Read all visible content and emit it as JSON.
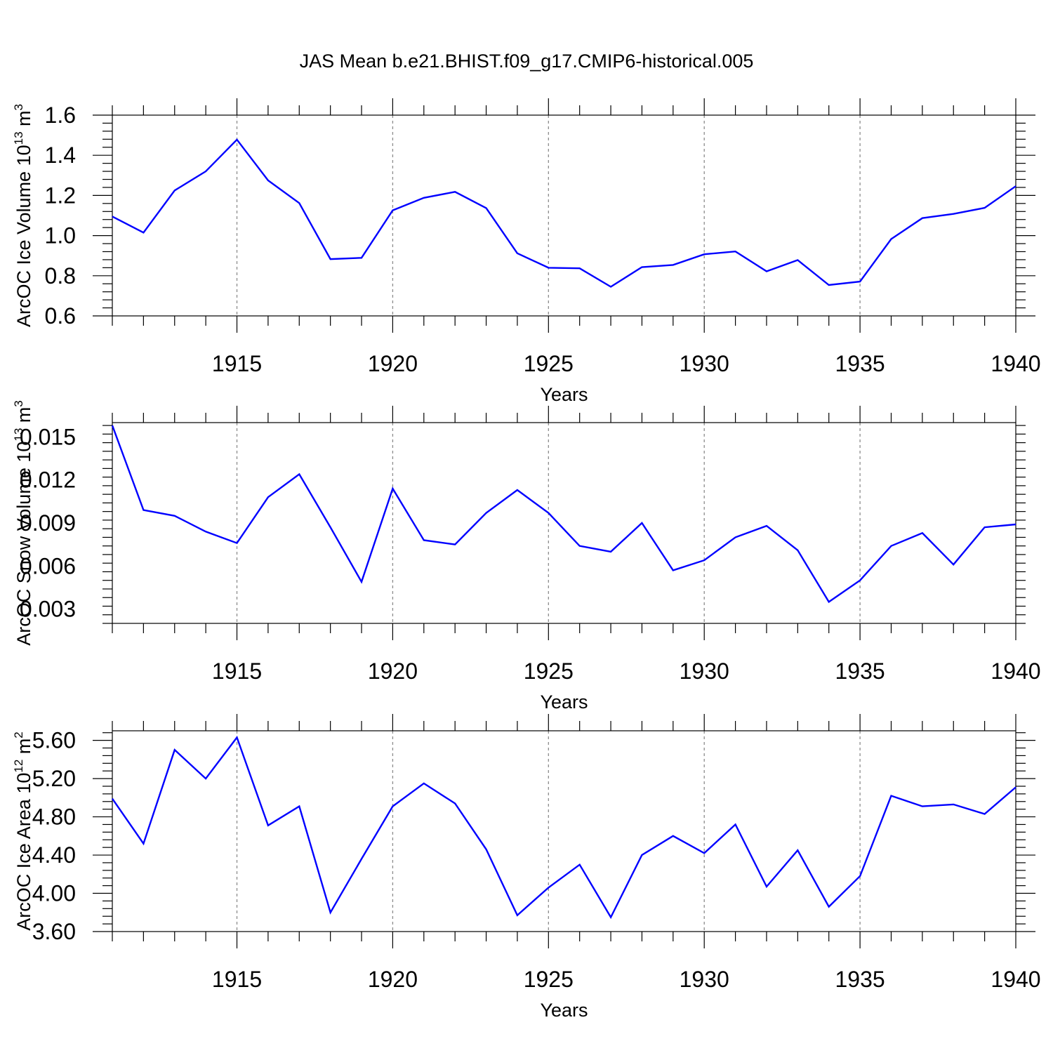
{
  "figure": {
    "title": "JAS Mean b.e21.BHIST.f09_g17.CMIP6-historical.005"
  },
  "colors": {
    "series": "#0000ff",
    "grid": "#8c8c8c",
    "axes": "#000000"
  },
  "chart_data": [
    {
      "type": "line",
      "xlabel": "Years",
      "ylabel_main": "ArcOC Ice Volume 10",
      "ylabel_sup": "13",
      "ylabel_unit": " m",
      "ylabel_unit_sup": "3",
      "xlim": [
        1911,
        1940
      ],
      "ylim": [
        0.6,
        1.6
      ],
      "xticks": [
        1915,
        1920,
        1925,
        1930,
        1935,
        1940
      ],
      "xtick_labels": [
        "1915",
        "1920",
        "1925",
        "1930",
        "1935",
        "1940"
      ],
      "yticks": [
        0.6,
        0.8,
        1.0,
        1.2,
        1.4,
        1.6
      ],
      "ytick_labels": [
        "0.6",
        "0.8",
        "1.0",
        "1.2",
        "1.4",
        "1.6"
      ],
      "grid": "vertical dashed at labeled years",
      "x": [
        1911,
        1912,
        1913,
        1914,
        1915,
        1916,
        1917,
        1918,
        1919,
        1920,
        1921,
        1922,
        1923,
        1924,
        1925,
        1926,
        1927,
        1928,
        1929,
        1930,
        1931,
        1932,
        1933,
        1934,
        1935,
        1936,
        1937,
        1938,
        1939,
        1940
      ],
      "values": [
        1.095,
        1.015,
        1.225,
        1.32,
        1.478,
        1.275,
        1.162,
        0.883,
        0.889,
        1.126,
        1.188,
        1.218,
        1.137,
        0.912,
        0.84,
        0.837,
        0.745,
        0.843,
        0.854,
        0.907,
        0.921,
        0.822,
        0.878,
        0.754,
        0.771,
        0.983,
        1.087,
        1.108,
        1.138,
        1.246
      ]
    },
    {
      "type": "line",
      "xlabel": "Years",
      "ylabel_main": "ArcOC Snow Volume 10",
      "ylabel_sup": "13",
      "ylabel_unit": " m",
      "ylabel_unit_sup": "3",
      "xlim": [
        1911,
        1940
      ],
      "ylim": [
        0.002,
        0.016
      ],
      "xticks": [
        1915,
        1920,
        1925,
        1930,
        1935,
        1940
      ],
      "xtick_labels": [
        "1915",
        "1920",
        "1925",
        "1930",
        "1935",
        "1940"
      ],
      "yticks": [
        0.003,
        0.006,
        0.009,
        0.012,
        0.015
      ],
      "ytick_labels": [
        "0.003",
        "0.006",
        "0.009",
        "0.012",
        "0.015"
      ],
      "grid": "vertical dashed at labeled years",
      "x": [
        1911,
        1912,
        1913,
        1914,
        1915,
        1916,
        1917,
        1918,
        1919,
        1920,
        1921,
        1922,
        1923,
        1924,
        1925,
        1926,
        1927,
        1928,
        1929,
        1930,
        1931,
        1932,
        1933,
        1934,
        1935,
        1936,
        1937,
        1938,
        1939,
        1940
      ],
      "values": [
        0.0158,
        0.0099,
        0.0095,
        0.0084,
        0.0076,
        0.0108,
        0.0124,
        0.0087,
        0.0049,
        0.0114,
        0.0078,
        0.0075,
        0.0097,
        0.0113,
        0.0097,
        0.0074,
        0.007,
        0.009,
        0.0057,
        0.0064,
        0.008,
        0.0088,
        0.0071,
        0.0035,
        0.005,
        0.0074,
        0.0083,
        0.0061,
        0.0087,
        0.0089
      ]
    },
    {
      "type": "line",
      "xlabel": "Years",
      "ylabel_main": "ArcOC Ice Area 10",
      "ylabel_sup": "12",
      "ylabel_unit": " m",
      "ylabel_unit_sup": "2",
      "xlim": [
        1911,
        1940
      ],
      "ylim": [
        3.6,
        5.7
      ],
      "xticks": [
        1915,
        1920,
        1925,
        1930,
        1935,
        1940
      ],
      "xtick_labels": [
        "1915",
        "1920",
        "1925",
        "1930",
        "1935",
        "1940"
      ],
      "yticks": [
        3.6,
        4.0,
        4.4,
        4.8,
        5.2,
        5.6
      ],
      "ytick_labels": [
        "3.60",
        "4.00",
        "4.40",
        "4.80",
        "5.20",
        "5.60"
      ],
      "grid": "vertical dashed at labeled years",
      "x": [
        1911,
        1912,
        1913,
        1914,
        1915,
        1916,
        1917,
        1918,
        1919,
        1920,
        1921,
        1922,
        1923,
        1924,
        1925,
        1926,
        1927,
        1928,
        1929,
        1930,
        1931,
        1932,
        1933,
        1934,
        1935,
        1936,
        1937,
        1938,
        1939,
        1940
      ],
      "values": [
        4.99,
        4.52,
        5.5,
        5.2,
        5.63,
        4.71,
        4.91,
        3.8,
        4.36,
        4.91,
        5.15,
        4.94,
        4.46,
        3.77,
        4.06,
        4.3,
        3.75,
        4.4,
        4.6,
        4.42,
        4.72,
        4.07,
        4.45,
        3.86,
        4.18,
        5.02,
        4.91,
        4.93,
        4.83,
        5.11
      ]
    }
  ]
}
